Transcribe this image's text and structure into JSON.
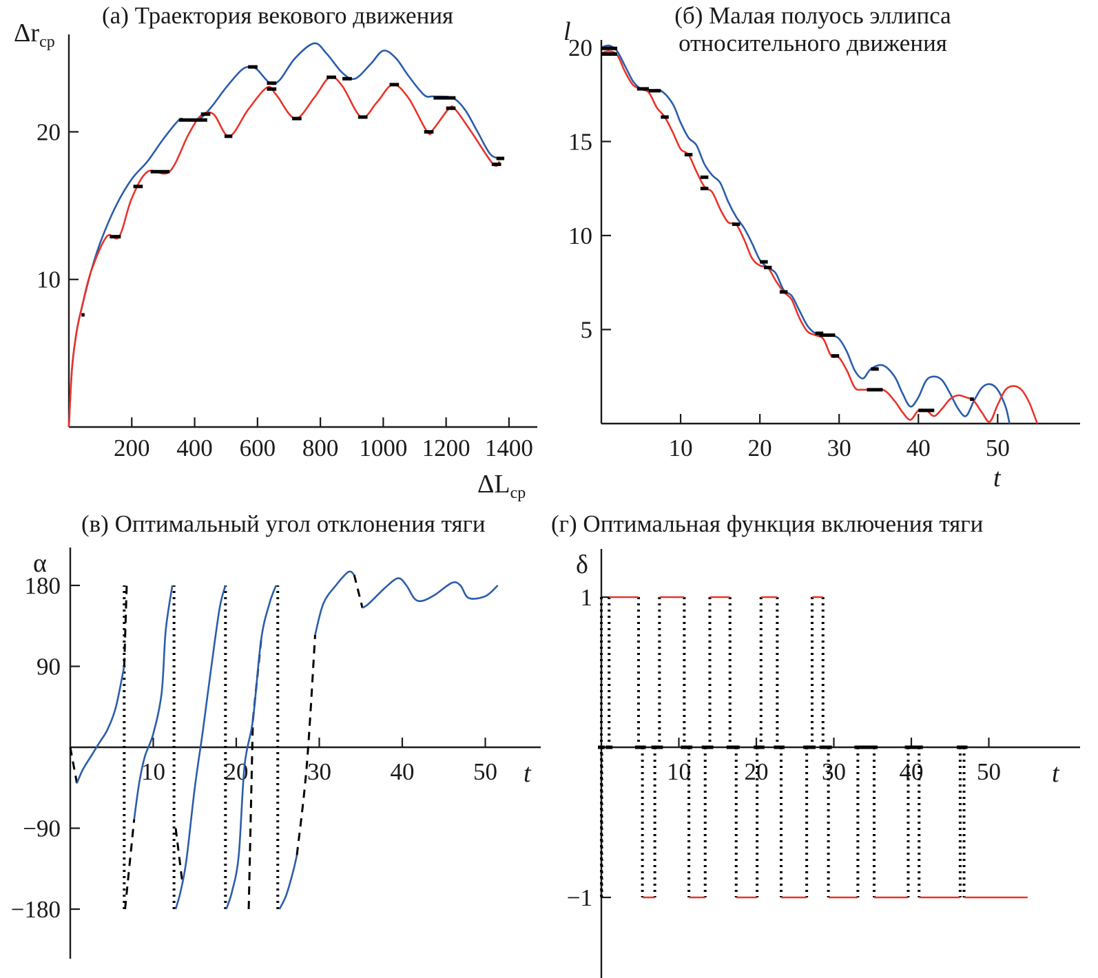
{
  "chart_data": [
    {
      "id": "a",
      "type": "line",
      "title": "(а) Траектория векового движения",
      "ylabel_main": "Δr",
      "ylabel_sub": "ср",
      "xlabel_main": "ΔL",
      "xlabel_sub": "ср",
      "xlim": [
        0,
        1500
      ],
      "ylim": [
        0,
        27
      ],
      "xticks": [
        200,
        400,
        600,
        800,
        1000,
        1200,
        1400
      ],
      "yticks": [
        10,
        20
      ],
      "series": [
        {
          "name": "blue",
          "color": "#2a5caa",
          "x": [
            0,
            10,
            25,
            40,
            70,
            100,
            150,
            200,
            250,
            300,
            350,
            370,
            410,
            450,
            500,
            550,
            580,
            600,
            640,
            670,
            720,
            780,
            820,
            870,
            910,
            960,
            1000,
            1040,
            1080,
            1130,
            1160,
            1220,
            1260,
            1300,
            1340,
            1370
          ],
          "y": [
            0,
            4,
            6.5,
            8,
            10.5,
            12.5,
            15,
            16.8,
            18,
            19.5,
            20.8,
            20.8,
            20.8,
            21.6,
            23,
            24.2,
            24.4,
            24.2,
            23.3,
            23.5,
            25,
            26,
            25.3,
            24,
            23.6,
            24.6,
            25.5,
            25,
            23.8,
            22.5,
            22.4,
            22.3,
            21.5,
            20,
            18.5,
            18.2
          ]
        },
        {
          "name": "red",
          "color": "#e8332a",
          "x": [
            0,
            10,
            25,
            40,
            70,
            120,
            160,
            200,
            250,
            320,
            380,
            420,
            460,
            510,
            570,
            630,
            660,
            720,
            780,
            830,
            870,
            930,
            980,
            1030,
            1080,
            1140,
            1160,
            1210,
            1230,
            1280,
            1350,
            1370
          ],
          "y": [
            0,
            4,
            6.5,
            8,
            10.5,
            12.9,
            12.9,
            15.5,
            17.3,
            17.3,
            19.8,
            21.1,
            21.2,
            19.7,
            21.5,
            23,
            22.5,
            20.9,
            22.3,
            23.7,
            23.1,
            21,
            22,
            23.2,
            22.3,
            20,
            20.2,
            21.6,
            21.5,
            20,
            17.8,
            18
          ]
        }
      ],
      "markers": [
        {
          "x": [
            40,
            50
          ],
          "y": 7.6
        },
        {
          "x": [
            130,
            165
          ],
          "y": 12.9
        },
        {
          "x": [
            205,
            235
          ],
          "y": 16.3
        },
        {
          "x": [
            260,
            320
          ],
          "y": 17.3
        },
        {
          "x": [
            350,
            440
          ],
          "y": 20.8
        },
        {
          "x": [
            420,
            450
          ],
          "y": 21.2
        },
        {
          "x": [
            495,
            520
          ],
          "y": 19.7
        },
        {
          "x": [
            570,
            600
          ],
          "y": 24.4
        },
        {
          "x": [
            630,
            660
          ],
          "y": 23.3
        },
        {
          "x": [
            630,
            660
          ],
          "y": 22.9
        },
        {
          "x": [
            710,
            740
          ],
          "y": 20.9
        },
        {
          "x": [
            820,
            850
          ],
          "y": 23.7
        },
        {
          "x": [
            870,
            900
          ],
          "y": 23.6
        },
        {
          "x": [
            920,
            950
          ],
          "y": 21
        },
        {
          "x": [
            1020,
            1050
          ],
          "y": 23.2
        },
        {
          "x": [
            1130,
            1160
          ],
          "y": 20
        },
        {
          "x": [
            1160,
            1230
          ],
          "y": 22.3
        },
        {
          "x": [
            1200,
            1230
          ],
          "y": 21.6
        },
        {
          "x": [
            1345,
            1375
          ],
          "y": 17.8
        },
        {
          "x": [
            1360,
            1385
          ],
          "y": 18.2
        }
      ]
    },
    {
      "id": "b",
      "type": "line",
      "title_lines": [
        "(б) Малая полуось эллипса",
        "относительного движения"
      ],
      "ylabel_main": "l",
      "xlabel_main": "t",
      "xlim": [
        0,
        60
      ],
      "ylim": [
        0,
        20.5
      ],
      "xticks": [
        10,
        20,
        30,
        40,
        50
      ],
      "yticks": [
        5,
        10,
        15,
        20
      ],
      "series": [
        {
          "name": "blue",
          "color": "#2a5caa",
          "x": [
            0,
            1,
            2,
            3,
            4,
            5,
            6,
            7.5,
            9,
            10,
            11,
            12,
            13,
            14,
            15,
            16,
            17,
            18,
            19,
            20,
            21,
            22,
            23,
            24,
            25,
            26,
            27,
            28,
            29,
            30,
            31,
            32,
            33,
            34,
            35.5,
            37,
            38,
            39,
            40,
            41,
            42,
            43,
            44,
            45,
            46,
            47,
            48,
            49,
            50,
            51,
            51.5
          ],
          "y": [
            20,
            20.1,
            19.8,
            19,
            18.2,
            17.8,
            17.7,
            17.7,
            17,
            16,
            15.2,
            14.8,
            13.8,
            13.2,
            12.8,
            11.8,
            11,
            10.4,
            9.6,
            8.7,
            8.3,
            8,
            7.1,
            6.8,
            6,
            5.2,
            4.8,
            4.7,
            4.7,
            4.5,
            3.8,
            2.8,
            2.4,
            2.9,
            3.1,
            2.5,
            1.6,
            0.9,
            1.4,
            2.3,
            2.5,
            2.3,
            1.6,
            0.8,
            0.4,
            1.2,
            1.9,
            2.1,
            1.8,
            0.9,
            0
          ]
        },
        {
          "name": "red",
          "color": "#e8332a",
          "x": [
            0,
            1,
            2,
            3,
            4,
            5,
            6,
            7,
            8,
            9,
            10,
            11,
            12,
            13,
            14,
            15,
            16,
            17,
            18,
            19,
            20,
            21,
            22,
            23,
            24,
            25,
            26,
            27,
            28,
            29,
            30,
            31,
            32,
            33,
            35.5,
            37,
            38,
            39,
            40,
            41,
            42,
            43,
            44,
            45,
            46,
            47,
            48,
            49,
            50,
            51,
            52,
            53,
            54,
            55
          ],
          "y": [
            19.7,
            19.8,
            19.6,
            18.7,
            18,
            17.8,
            17.6,
            16.8,
            16.3,
            15.5,
            14.6,
            14.3,
            13.4,
            12.6,
            12.3,
            11.4,
            10.7,
            10.6,
            9.8,
            8.8,
            8.4,
            8.3,
            7.6,
            7,
            6.6,
            5.6,
            4.9,
            4.7,
            4.5,
            3.6,
            3.5,
            2.8,
            1.9,
            1.8,
            1.8,
            1.2,
            0.6,
            0.2,
            0.7,
            0.7,
            0.4,
            0.8,
            1.3,
            1.5,
            1.4,
            1.2,
            0.6,
            0.1,
            1,
            1.8,
            2,
            1.8,
            1.1,
            0
          ]
        }
      ],
      "markers": [
        {
          "x": [
            0,
            2
          ],
          "y": 19.95
        },
        {
          "x": [
            0,
            2
          ],
          "y": 19.65
        },
        {
          "x": [
            4.5,
            6
          ],
          "y": 17.8
        },
        {
          "x": [
            6,
            7.5
          ],
          "y": 17.7
        },
        {
          "x": [
            7.5,
            8.5
          ],
          "y": 16.3
        },
        {
          "x": [
            10.5,
            11.5
          ],
          "y": 14.3
        },
        {
          "x": [
            12.5,
            13.5
          ],
          "y": 13.1
        },
        {
          "x": [
            12.5,
            13.5
          ],
          "y": 12.5
        },
        {
          "x": [
            16.5,
            17.5
          ],
          "y": 10.6
        },
        {
          "x": [
            20,
            21
          ],
          "y": 8.6
        },
        {
          "x": [
            20.5,
            21.5
          ],
          "y": 8.3
        },
        {
          "x": [
            22.5,
            23.5
          ],
          "y": 7
        },
        {
          "x": [
            27,
            28
          ],
          "y": 4.8
        },
        {
          "x": [
            27.5,
            29.5
          ],
          "y": 4.7
        },
        {
          "x": [
            29,
            30
          ],
          "y": 3.6
        },
        {
          "x": [
            34,
            35
          ],
          "y": 2.9
        },
        {
          "x": [
            33.5,
            35.5
          ],
          "y": 1.8
        },
        {
          "x": [
            40,
            42
          ],
          "y": 0.7
        },
        {
          "x": [
            46.5,
            47
          ],
          "y": 1.3
        }
      ]
    },
    {
      "id": "c",
      "type": "line",
      "title": "(в) Оптимальный угол отклонения тяги",
      "ylabel_main": "α",
      "xlabel_main": "t",
      "xlim": [
        0,
        56
      ],
      "ylim": [
        -220,
        220
      ],
      "xticks": [
        10,
        20,
        30,
        40,
        50
      ],
      "yticks": [
        -180,
        -90,
        90,
        180
      ],
      "solid_segments": [
        {
          "x": [
            0.8,
            1.5,
            2.5,
            3.5,
            4.5,
            5.5,
            6.5
          ],
          "y": [
            -40,
            -25,
            -10,
            5,
            20,
            45,
            90
          ]
        },
        {
          "x": [
            7.7,
            8.3,
            9,
            10,
            11,
            11.5,
            12.3
          ],
          "y": [
            -80,
            -40,
            -10,
            15,
            60,
            130,
            180
          ]
        },
        {
          "x": [
            12.7,
            13.3,
            14,
            15,
            16,
            17,
            18,
            18.7
          ],
          "y": [
            -180,
            -160,
            -125,
            -45,
            20,
            90,
            155,
            180
          ]
        },
        {
          "x": [
            18.8,
            19.5,
            20.3,
            21,
            22,
            23,
            24,
            24.8
          ],
          "y": [
            -180,
            -160,
            -120,
            -20,
            30,
            120,
            160,
            180
          ]
        },
        {
          "x": [
            25.2,
            26,
            26.8,
            27.3
          ],
          "y": [
            -180,
            -165,
            -140,
            -120
          ]
        },
        {
          "x": [
            29.5,
            30.5,
            32,
            33.5,
            34.2
          ],
          "y": [
            125,
            160,
            180,
            195,
            192
          ]
        },
        {
          "x": [
            35.2,
            36,
            38,
            39.5,
            40.5,
            41.5,
            42.5,
            44,
            46,
            47,
            48,
            50,
            51.5
          ],
          "y": [
            155,
            160,
            178,
            188,
            180,
            165,
            163,
            170,
            183,
            180,
            166,
            168,
            180
          ]
        }
      ],
      "dashed_segments": [
        {
          "x": [
            0,
            0.8
          ],
          "y": [
            0,
            -40
          ]
        },
        {
          "x": [
            6.5,
            6.8
          ],
          "y": [
            90,
            180
          ]
        },
        {
          "x": [
            6.6,
            7.7
          ],
          "y": [
            -180,
            -80
          ]
        },
        {
          "x": [
            12.7,
            13.5
          ],
          "y": [
            -90,
            -150
          ]
        },
        {
          "x": [
            21.5,
            22
          ],
          "y": [
            -180,
            30
          ]
        },
        {
          "x": [
            22,
            23
          ],
          "y": [
            30,
            120
          ]
        },
        {
          "x": [
            27.3,
            28.5,
            29.5
          ],
          "y": [
            -120,
            -20,
            125
          ]
        },
        {
          "x": [
            34.2,
            35.2
          ],
          "y": [
            192,
            155
          ]
        }
      ],
      "dotted_verticals": [
        {
          "x": 6.5,
          "y": [
            -180,
            180
          ]
        },
        {
          "x": 12.5,
          "y": [
            -180,
            180
          ]
        },
        {
          "x": 18.7,
          "y": [
            -180,
            180
          ]
        },
        {
          "x": 25,
          "y": [
            -180,
            180
          ]
        }
      ]
    },
    {
      "id": "d",
      "type": "line",
      "title": "(г) Оптимальная функция включения тяги",
      "ylabel_main": "δ",
      "xlabel_main": "t",
      "xlim": [
        0,
        60
      ],
      "ylim": [
        -1.5,
        1.3
      ],
      "xticks": [
        10,
        20,
        30,
        40,
        50
      ],
      "yticks": [
        -1,
        1
      ],
      "plus_one_intervals": [
        [
          1,
          4.8
        ],
        [
          7.5,
          10.7
        ],
        [
          14,
          16.6
        ],
        [
          20.6,
          22.7
        ],
        [
          27.2,
          28.6
        ]
      ],
      "minus_one_intervals": [
        [
          5.3,
          6.9
        ],
        [
          11.3,
          13.4
        ],
        [
          17.4,
          20.1
        ],
        [
          23.2,
          26.5
        ],
        [
          29.3,
          33.1
        ],
        [
          35.2,
          39.6
        ],
        [
          41,
          46.3
        ],
        [
          46.8,
          55
        ]
      ],
      "switch_times": [
        0,
        1,
        4.8,
        5.3,
        6.9,
        7.5,
        10.7,
        11.3,
        13.4,
        14,
        16.6,
        17.4,
        20.1,
        20.6,
        22.7,
        23.2,
        26.5,
        27.2,
        28.6,
        29.3,
        33.1,
        35.2,
        39.6,
        41,
        46.3,
        46.8
      ],
      "zero_intervals": [
        [
          33.1,
          35.2
        ],
        [
          39.6,
          41.5
        ]
      ]
    }
  ]
}
